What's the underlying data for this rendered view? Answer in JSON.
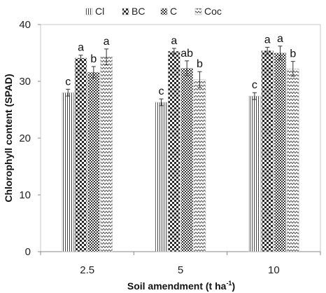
{
  "chart_data": {
    "type": "bar",
    "xlabel": "Soil amendment (t ha",
    "xlabel_sup": "-1",
    "xlabel_end": ")",
    "ylabel": "Chlorophyll content (SPAD)",
    "ylim": [
      0,
      40
    ],
    "yticks": [
      "0",
      "10",
      "20",
      "30",
      "40"
    ],
    "ytick_values": [
      0,
      10,
      20,
      30,
      40
    ],
    "categories": [
      "2.5",
      "5",
      "10"
    ],
    "legend_position": "top",
    "series": [
      {
        "name": "Cl",
        "pattern": "vlines",
        "values": [
          28.0,
          26.3,
          27.4
        ],
        "errors": [
          0.6,
          0.6,
          0.6
        ],
        "labels": [
          "c",
          "c",
          "c"
        ]
      },
      {
        "name": "BC",
        "pattern": "checker",
        "values": [
          34.1,
          35.3,
          35.4
        ],
        "errors": [
          0.5,
          0.5,
          0.6
        ],
        "labels": [
          "a",
          "a",
          "a"
        ]
      },
      {
        "name": "C",
        "pattern": "checker-small",
        "values": [
          31.6,
          32.3,
          35.0
        ],
        "errors": [
          1.0,
          1.3,
          1.2
        ],
        "labels": [
          "b",
          "ab",
          "a"
        ]
      },
      {
        "name": "Coc",
        "pattern": "zigzag",
        "values": [
          34.3,
          30.3,
          32.2
        ],
        "errors": [
          1.4,
          1.4,
          1.3
        ],
        "labels": [
          "a",
          "b",
          "b"
        ]
      }
    ]
  }
}
